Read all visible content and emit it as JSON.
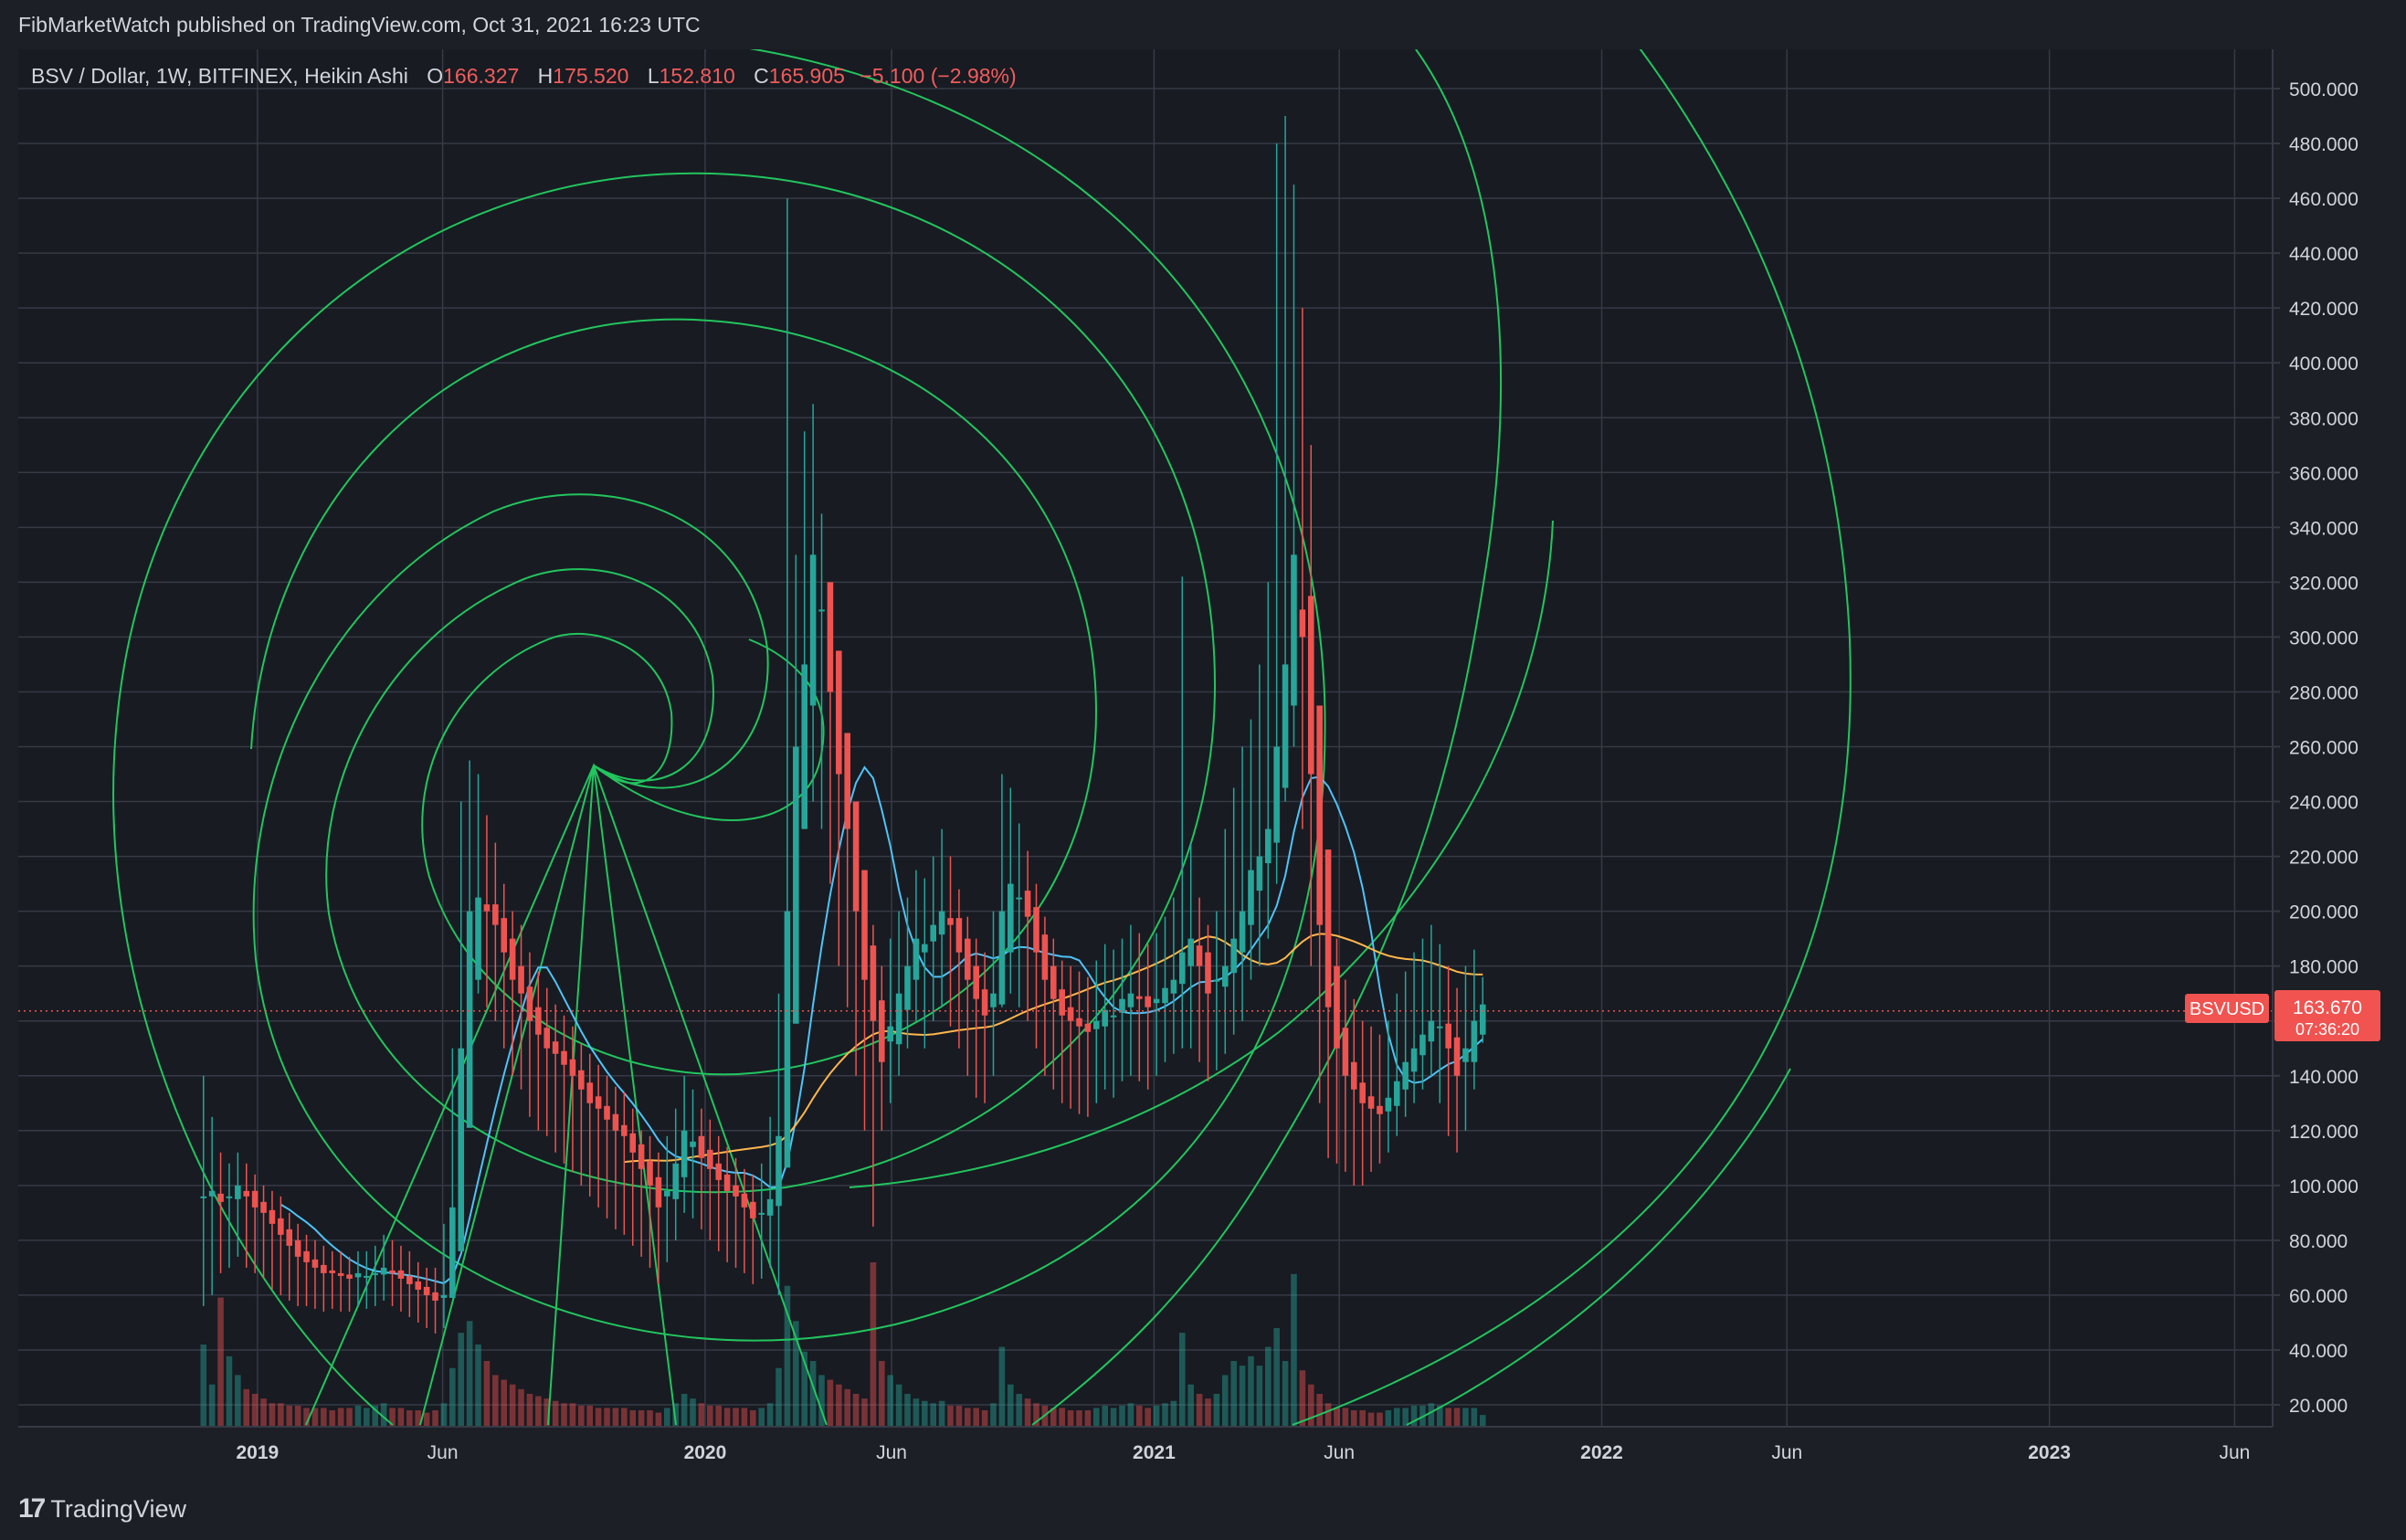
{
  "header": {
    "published": "FibMarketWatch published on TradingView.com, Oct 31, 2021 16:23 UTC"
  },
  "symbol": {
    "title": "BSV / Dollar, 1W, BITFINEX, Heikin Ashi",
    "o_label": "O",
    "o_value": "166.327",
    "h_label": "H",
    "h_value": "175.520",
    "l_label": "L",
    "l_value": "152.810",
    "c_label": "C",
    "c_value": "165.905",
    "change": "−5.100 (−2.98%)"
  },
  "price_tag": {
    "ticker": "BSVUSD",
    "price": "163.670",
    "countdown": "07:36:20"
  },
  "footer": {
    "brand": "TradingView",
    "logo_icon": "tradingview-logo-icon"
  },
  "colors": {
    "background": "#1c1f26",
    "grid": "#363a45",
    "up": "#26a69a",
    "down": "#ef5350",
    "fib": "#22c55e",
    "ma_blue": "#4fc3f7",
    "ma_orange": "#ffb74d",
    "price_tag": "#f05350"
  },
  "chart_data": {
    "type": "candlestick",
    "title": "BSV / Dollar, 1W, BITFINEX, Heikin Ashi",
    "y_ticks": [
      "20.000",
      "40.000",
      "60.000",
      "80.000",
      "100.000",
      "120.000",
      "140.000",
      "160.000",
      "180.000",
      "200.000",
      "220.000",
      "240.000",
      "260.000",
      "280.000",
      "300.000",
      "320.000",
      "340.000",
      "360.000",
      "380.000",
      "400.000",
      "420.000",
      "440.000",
      "460.000",
      "480.000",
      "500.000"
    ],
    "ylim": [
      13,
      515
    ],
    "x_ticks": [
      "2019",
      "Jun",
      "2020",
      "Jun",
      "2021",
      "Jun",
      "2022",
      "Jun",
      "2023",
      "Jun"
    ],
    "xlim": [
      "2018-06-20",
      "2023-07-02"
    ],
    "grid": true,
    "last_price": 163.67,
    "candle_start": "2018-11-18",
    "candle_interval_days": 7,
    "series": [
      {
        "name": "BSVUSD",
        "close": [
          96,
          98,
          94,
          96,
          100,
          96,
          92,
          90,
          86,
          82,
          78,
          74,
          72,
          70,
          68,
          68,
          67,
          66,
          68,
          67,
          68,
          70,
          68,
          66,
          64,
          62,
          60,
          58,
          60,
          92,
          150,
          200,
          205,
          200,
          195,
          185,
          175,
          170,
          160,
          155,
          150,
          148,
          144,
          140,
          135,
          130,
          128,
          124,
          120,
          118,
          112,
          106,
          100,
          92,
          98,
          108,
          120,
          116,
          110,
          106,
          102,
          98,
          96,
          92,
          88,
          90,
          95,
          118,
          200,
          260,
          290,
          330,
          310,
          280,
          250,
          230,
          200,
          175,
          160,
          145,
          158,
          170,
          180,
          190,
          188,
          195,
          200,
          195,
          185,
          175,
          168,
          162,
          170,
          200,
          210,
          205,
          198,
          185,
          175,
          168,
          162,
          160,
          158,
          156,
          160,
          164,
          162,
          168,
          170,
          168,
          165,
          168,
          172,
          175,
          185,
          190,
          180,
          170,
          175,
          180,
          190,
          200,
          215,
          220,
          230,
          260,
          290,
          330,
          300,
          250,
          195,
          165,
          150,
          140,
          135,
          130,
          128,
          126,
          132,
          138,
          145,
          150,
          155,
          160,
          158,
          150,
          140,
          150,
          160,
          166
        ],
        "high": [
          140,
          125,
          112,
          108,
          112,
          108,
          104,
          100,
          98,
          96,
          90,
          86,
          82,
          80,
          78,
          76,
          76,
          74,
          76,
          76,
          78,
          82,
          80,
          78,
          76,
          72,
          70,
          70,
          86,
          150,
          240,
          255,
          250,
          235,
          225,
          210,
          200,
          195,
          185,
          178,
          172,
          166,
          162,
          158,
          152,
          148,
          144,
          140,
          136,
          134,
          128,
          120,
          118,
          112,
          118,
          128,
          140,
          135,
          128,
          124,
          118,
          114,
          110,
          106,
          104,
          108,
          125,
          170,
          460,
          330,
          375,
          385,
          345,
          315,
          285,
          260,
          235,
          210,
          195,
          180,
          190,
          200,
          205,
          215,
          212,
          220,
          230,
          220,
          208,
          198,
          190,
          185,
          200,
          250,
          245,
          232,
          222,
          210,
          198,
          190,
          182,
          180,
          178,
          176,
          182,
          188,
          186,
          190,
          195,
          192,
          188,
          192,
          198,
          205,
          322,
          225,
          205,
          195,
          200,
          230,
          245,
          260,
          270,
          290,
          320,
          480,
          490,
          465,
          420,
          370,
          250,
          210,
          190,
          175,
          168,
          160,
          158,
          155,
          160,
          170,
          178,
          185,
          190,
          195,
          188,
          180,
          172,
          180,
          186,
          176
        ],
        "low": [
          56,
          60,
          68,
          70,
          74,
          70,
          68,
          66,
          62,
          60,
          58,
          56,
          56,
          55,
          54,
          55,
          54,
          54,
          56,
          55,
          56,
          58,
          56,
          54,
          52,
          50,
          48,
          46,
          48,
          70,
          110,
          160,
          170,
          165,
          160,
          150,
          140,
          135,
          125,
          120,
          118,
          112,
          108,
          105,
          100,
          96,
          92,
          88,
          84,
          82,
          78,
          74,
          70,
          64,
          72,
          80,
          90,
          88,
          84,
          80,
          76,
          72,
          70,
          68,
          64,
          66,
          70,
          60,
          140,
          200,
          230,
          240,
          230,
          210,
          180,
          165,
          140,
          120,
          85,
          120,
          130,
          140,
          150,
          160,
          150,
          160,
          165,
          158,
          150,
          140,
          132,
          130,
          140,
          165,
          170,
          165,
          160,
          150,
          140,
          135,
          130,
          128,
          126,
          125,
          130,
          135,
          132,
          138,
          140,
          138,
          135,
          140,
          145,
          148,
          150,
          150,
          145,
          138,
          142,
          148,
          155,
          160,
          175,
          180,
          190,
          210,
          240,
          260,
          230,
          180,
          130,
          110,
          108,
          105,
          100,
          100,
          105,
          108,
          112,
          118,
          125,
          130,
          135,
          140,
          130,
          118,
          112,
          120,
          135,
          152
        ]
      },
      {
        "name": "MA (blue)",
        "color": "#4fc3f7"
      },
      {
        "name": "MA (orange)",
        "color": "#ffb74d"
      }
    ],
    "volume": [
      35,
      18,
      55,
      30,
      22,
      16,
      14,
      12,
      10,
      10,
      9,
      9,
      8,
      8,
      8,
      7,
      8,
      8,
      9,
      8,
      9,
      10,
      8,
      8,
      7,
      7,
      6,
      7,
      10,
      25,
      40,
      45,
      35,
      28,
      22,
      20,
      18,
      16,
      14,
      13,
      12,
      11,
      10,
      10,
      9,
      9,
      8,
      8,
      8,
      8,
      7,
      7,
      7,
      6,
      8,
      10,
      14,
      12,
      10,
      9,
      9,
      8,
      8,
      8,
      7,
      8,
      10,
      25,
      60,
      45,
      32,
      28,
      22,
      20,
      18,
      16,
      14,
      12,
      70,
      28,
      22,
      18,
      14,
      12,
      11,
      10,
      11,
      9,
      9,
      8,
      8,
      7,
      10,
      34,
      18,
      14,
      12,
      10,
      9,
      8,
      8,
      7,
      7,
      7,
      8,
      9,
      8,
      9,
      10,
      9,
      8,
      9,
      10,
      11,
      40,
      18,
      14,
      12,
      14,
      22,
      28,
      26,
      30,
      26,
      34,
      42,
      28,
      65,
      24,
      18,
      14,
      10,
      8,
      8,
      7,
      7,
      6,
      6,
      7,
      8,
      8,
      9,
      9,
      10,
      9,
      8,
      8,
      8,
      8,
      5
    ]
  }
}
